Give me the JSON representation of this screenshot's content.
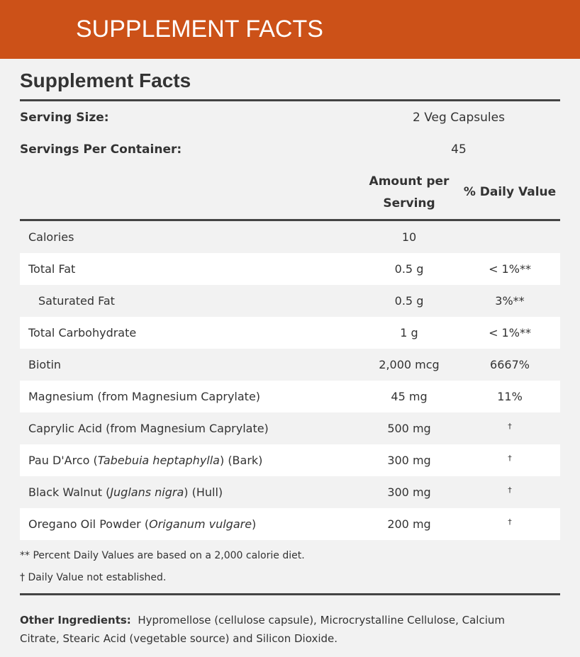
{
  "header": {
    "banner": "SUPPLEMENT FACTS"
  },
  "panel": {
    "title": "Supplement Facts",
    "serving_size": {
      "label": "Serving Size:",
      "value": "2 Veg Capsules"
    },
    "servings_per_container": {
      "label": "Servings Per Container:",
      "value": "45"
    },
    "columns": {
      "amount": [
        "Amount per",
        "Serving"
      ],
      "daily_value": "% Daily Value"
    },
    "rows": [
      {
        "name": [
          "Calories"
        ],
        "amount": "10",
        "daily_value": ""
      },
      {
        "name": [
          "Total Fat"
        ],
        "amount": "0.5 g",
        "daily_value": "< 1%**"
      },
      {
        "name": [
          "Saturated Fat"
        ],
        "amount": "0.5 g",
        "daily_value": "3%**",
        "indent": true
      },
      {
        "name": [
          "Total Carbohydrate"
        ],
        "amount": "1 g",
        "daily_value": "< 1%**"
      },
      {
        "name": [
          "Biotin"
        ],
        "amount": "2,000 mcg",
        "daily_value": "6667%"
      },
      {
        "name": [
          "Magnesium (from Magnesium Caprylate)"
        ],
        "amount": "45 mg",
        "daily_value": "11%"
      },
      {
        "name": [
          "Caprylic Acid (from Magnesium Caprylate)"
        ],
        "amount": "500 mg",
        "daily_value": "†"
      },
      {
        "name": [
          "Pau D'Arco (",
          "Tabebuia heptaphylla",
          ") (Bark)"
        ],
        "amount": "300 mg",
        "daily_value": "†"
      },
      {
        "name": [
          "Black Walnut (",
          "Juglans nigra",
          ") (Hull)"
        ],
        "amount": "300 mg",
        "daily_value": "†"
      },
      {
        "name": [
          "Oregano Oil Powder (",
          "Origanum vulgare",
          ")"
        ],
        "amount": "200 mg",
        "daily_value": "†"
      }
    ],
    "footnotes": [
      "** Percent Daily Values are based on a 2,000 calorie diet.",
      "† Daily Value not established."
    ],
    "other_ingredients": {
      "label": "Other Ingredients:",
      "text": "Hypromellose (cellulose capsule), Microcrystalline Cellulose, Calcium Citrate, Stearic Acid (vegetable source) and Silicon Dioxide."
    }
  }
}
